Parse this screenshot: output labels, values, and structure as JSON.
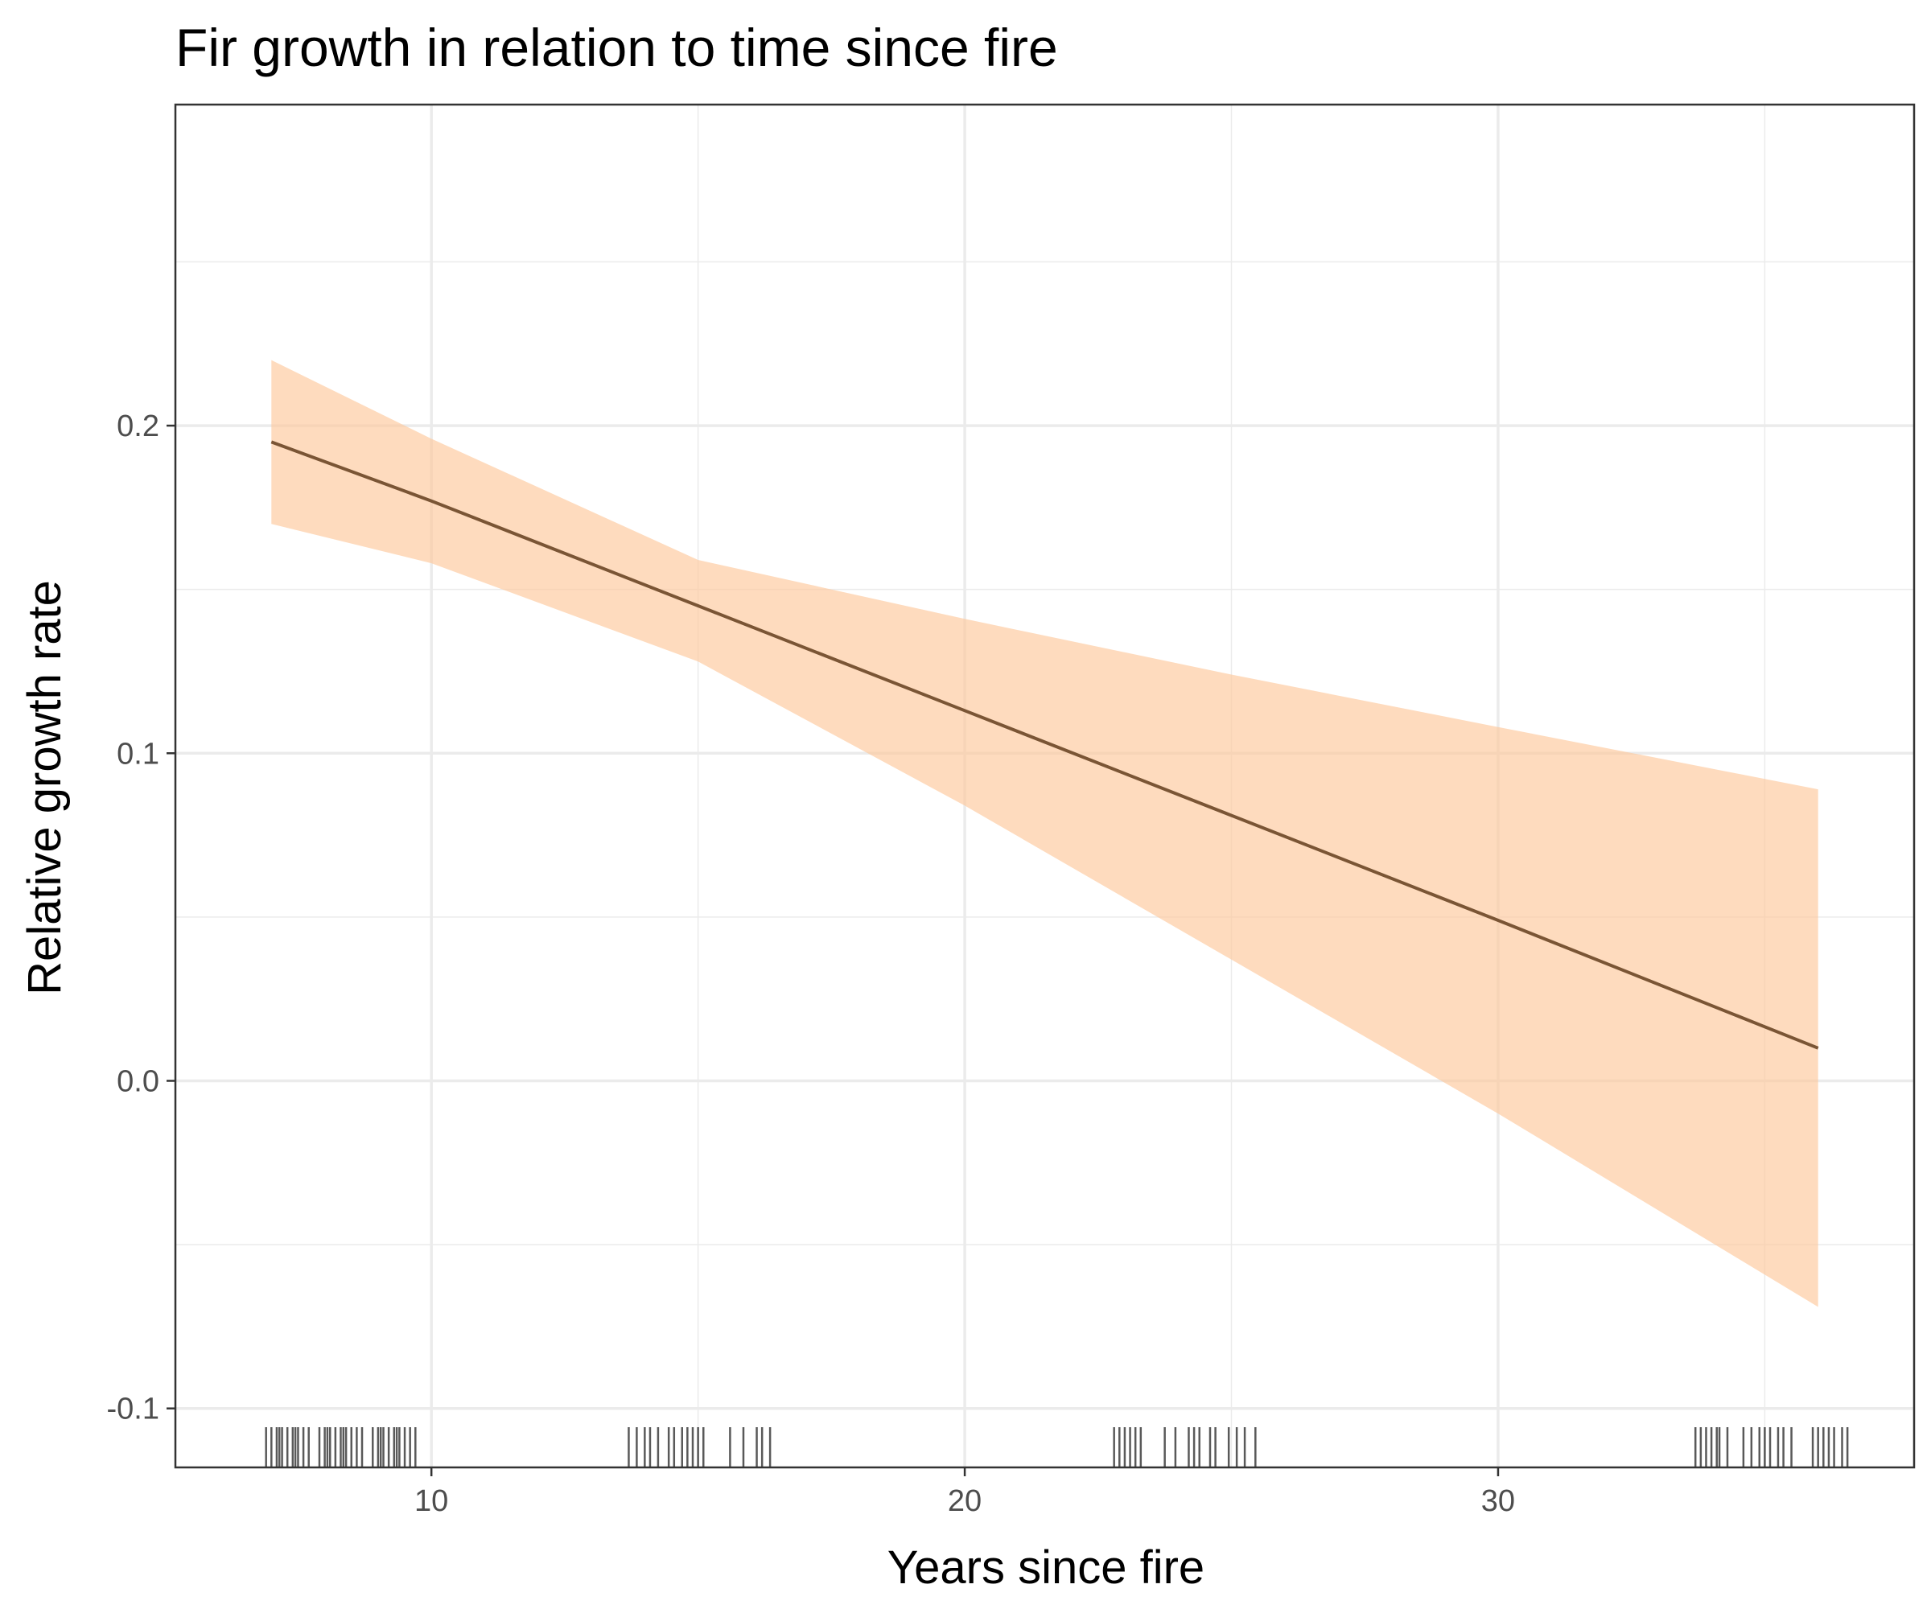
{
  "chart_data": {
    "type": "line",
    "title": "Fir growth in relation to time since fire",
    "xlabel": "Years since fire",
    "ylabel": "Relative growth rate",
    "xlim": [
      5.2,
      37.8
    ],
    "ylim": [
      -0.118,
      0.298
    ],
    "x_ticks": [
      10,
      20,
      30
    ],
    "x_tick_labels": [
      "10",
      "20",
      "30"
    ],
    "x_minor_ticks": [
      15,
      25,
      35
    ],
    "y_ticks": [
      -0.1,
      0.0,
      0.1,
      0.2
    ],
    "y_tick_labels": [
      "-0.1",
      "0.0",
      "0.1",
      "0.2"
    ],
    "y_minor_ticks": [
      -0.05,
      0.05,
      0.15,
      0.25
    ],
    "grid": true,
    "legend": "none",
    "colors": {
      "line": "#7a5535",
      "ribbon": "#fdc89b",
      "grid": "#ebebeb",
      "rug": "#000000",
      "border": "#333333"
    },
    "series": [
      {
        "x": [
          7,
          10,
          15,
          20,
          25,
          30,
          36
        ],
        "y": [
          0.195,
          0.177,
          0.145,
          0.113,
          0.081,
          0.049,
          0.01
        ],
        "lower": [
          0.17,
          0.158,
          0.128,
          0.084,
          0.037,
          -0.01,
          -0.069
        ],
        "upper": [
          0.22,
          0.196,
          0.159,
          0.141,
          0.124,
          0.108,
          0.089
        ]
      }
    ],
    "rug_x": [
      6.9,
      7.0,
      7.1,
      7.15,
      7.2,
      7.3,
      7.4,
      7.45,
      7.5,
      7.6,
      7.7,
      7.9,
      8.0,
      8.05,
      8.1,
      8.2,
      8.3,
      8.35,
      8.4,
      8.5,
      8.6,
      8.7,
      8.9,
      9.0,
      9.05,
      9.1,
      9.2,
      9.3,
      9.35,
      9.4,
      9.5,
      9.6,
      9.7,
      13.7,
      13.85,
      14.0,
      14.1,
      14.25,
      14.45,
      14.55,
      14.7,
      14.8,
      14.9,
      15.0,
      15.1,
      15.6,
      15.85,
      16.1,
      16.2,
      16.35,
      22.8,
      22.9,
      23.0,
      23.1,
      23.2,
      23.3,
      23.75,
      23.95,
      24.2,
      24.3,
      24.4,
      24.6,
      24.7,
      24.95,
      25.1,
      25.25,
      25.45,
      33.7,
      33.8,
      33.9,
      34.0,
      34.1,
      34.15,
      34.3,
      34.6,
      34.75,
      34.9,
      35.0,
      35.1,
      35.25,
      35.35,
      35.5,
      35.9,
      36.0,
      36.1,
      36.2,
      36.3,
      36.45,
      36.55
    ]
  }
}
